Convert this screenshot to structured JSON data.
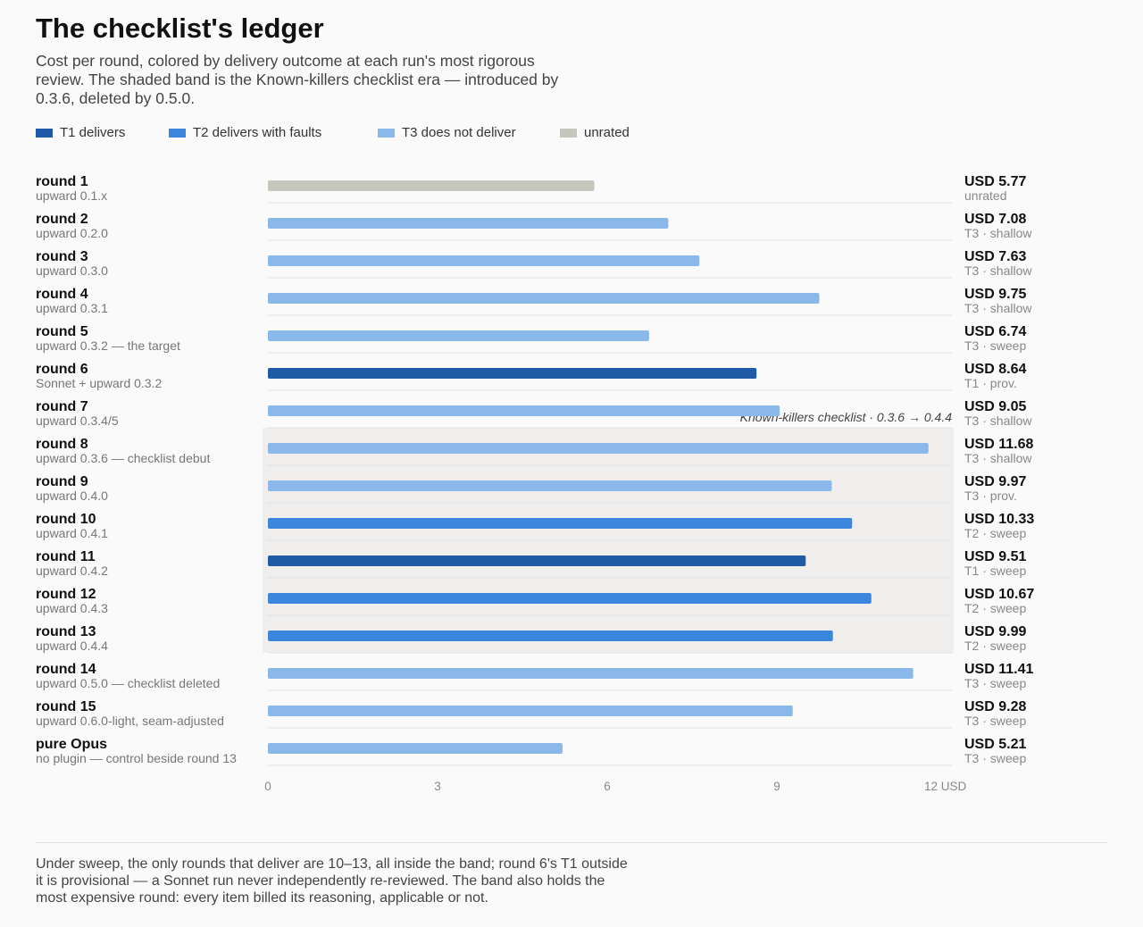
{
  "header": {
    "title": "The checklist's ledger",
    "subtitle": "Cost per round, colored by delivery outcome at each run's most rigorous review. The shaded band is the Known-killers checklist era — introduced by 0.3.6, deleted by 0.5.0."
  },
  "legend": [
    {
      "key": "T1",
      "label": "T1 delivers",
      "color": "#1f5aa6"
    },
    {
      "key": "T2",
      "label": "T2 delivers with faults",
      "color": "#3b86dc"
    },
    {
      "key": "T3",
      "label": "T3 does not deliver",
      "color": "#8ab8eb"
    },
    {
      "key": "unrated",
      "label": "unrated",
      "color": "#c6c6bd"
    }
  ],
  "chart_data": {
    "type": "bar",
    "orientation": "horizontal",
    "xlim": [
      0,
      12
    ],
    "xticks": [
      "0",
      "3",
      "6",
      "9",
      "12 USD"
    ],
    "band": {
      "label": "Known-killers checklist · 0.3.6 → 0.4.4",
      "from_row": 7,
      "to_row": 12
    },
    "rows": [
      {
        "name": "round 1",
        "detail": "upward 0.1.x",
        "value": 5.77,
        "value_label": "USD 5.77",
        "tier": "unrated",
        "tier_label": "unrated"
      },
      {
        "name": "round 2",
        "detail": "upward 0.2.0",
        "value": 7.08,
        "value_label": "USD 7.08",
        "tier": "T3",
        "tier_label": "T3 · shallow"
      },
      {
        "name": "round 3",
        "detail": "upward 0.3.0",
        "value": 7.63,
        "value_label": "USD 7.63",
        "tier": "T3",
        "tier_label": "T3 · shallow"
      },
      {
        "name": "round 4",
        "detail": "upward 0.3.1",
        "value": 9.75,
        "value_label": "USD 9.75",
        "tier": "T3",
        "tier_label": "T3 · shallow"
      },
      {
        "name": "round 5",
        "detail": "upward 0.3.2 — the target",
        "value": 6.74,
        "value_label": "USD 6.74",
        "tier": "T3",
        "tier_label": "T3 · sweep"
      },
      {
        "name": "round 6",
        "detail": "Sonnet + upward 0.3.2",
        "value": 8.64,
        "value_label": "USD 8.64",
        "tier": "T1",
        "tier_label": "T1 · prov."
      },
      {
        "name": "round 7",
        "detail": "upward 0.3.4/5",
        "value": 9.05,
        "value_label": "USD 9.05",
        "tier": "T3",
        "tier_label": "T3 · shallow"
      },
      {
        "name": "round 8",
        "detail": "upward 0.3.6 — checklist debut",
        "value": 11.68,
        "value_label": "USD 11.68",
        "tier": "T3",
        "tier_label": "T3 · shallow"
      },
      {
        "name": "round 9",
        "detail": "upward 0.4.0",
        "value": 9.97,
        "value_label": "USD 9.97",
        "tier": "T3",
        "tier_label": "T3 · prov."
      },
      {
        "name": "round 10",
        "detail": "upward 0.4.1",
        "value": 10.33,
        "value_label": "USD 10.33",
        "tier": "T2",
        "tier_label": "T2 · sweep"
      },
      {
        "name": "round 11",
        "detail": "upward 0.4.2",
        "value": 9.51,
        "value_label": "USD 9.51",
        "tier": "T1",
        "tier_label": "T1 · sweep"
      },
      {
        "name": "round 12",
        "detail": "upward 0.4.3",
        "value": 10.67,
        "value_label": "USD 10.67",
        "tier": "T2",
        "tier_label": "T2 · sweep"
      },
      {
        "name": "round 13",
        "detail": "upward 0.4.4",
        "value": 9.99,
        "value_label": "USD 9.99",
        "tier": "T2",
        "tier_label": "T2 · sweep"
      },
      {
        "name": "round 14",
        "detail": "upward 0.5.0 — checklist deleted",
        "value": 11.41,
        "value_label": "USD 11.41",
        "tier": "T3",
        "tier_label": "T3 · sweep"
      },
      {
        "name": "round 15",
        "detail": "upward 0.6.0-light, seam-adjusted",
        "value": 9.28,
        "value_label": "USD 9.28",
        "tier": "T3",
        "tier_label": "T3 · sweep"
      },
      {
        "name": "pure Opus",
        "detail": "no plugin — control beside round 13",
        "value": 5.21,
        "value_label": "USD 5.21",
        "tier": "T3",
        "tier_label": "T3 · sweep"
      }
    ]
  },
  "footer": {
    "note": "Under sweep, the only rounds that deliver are 10–13, all inside the band; round 6's T1 outside it is provisional — a Sonnet run never independently re-reviewed. The band also holds the most expensive round: every item billed its reasoning, applicable or not."
  }
}
